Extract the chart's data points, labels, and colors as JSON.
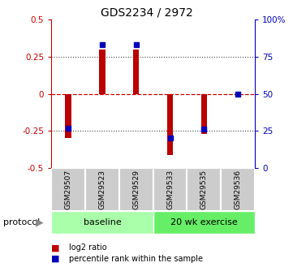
{
  "title": "GDS2234 / 2972",
  "samples": [
    "GSM29507",
    "GSM29523",
    "GSM29529",
    "GSM29533",
    "GSM29535",
    "GSM29536"
  ],
  "log2_ratio": [
    -0.3,
    0.3,
    0.3,
    -0.41,
    -0.27,
    -0.01
  ],
  "percentile_rank": [
    27,
    83,
    83,
    20,
    26,
    50
  ],
  "groups": [
    {
      "label": "baseline",
      "color": "#aaffaa",
      "start": 0,
      "end": 3
    },
    {
      "label": "20 wk exercise",
      "color": "#66ee66",
      "start": 3,
      "end": 6
    }
  ],
  "bar_color": "#bb0000",
  "dot_color": "#0000bb",
  "ylim_left": [
    -0.5,
    0.5
  ],
  "ylim_right": [
    0,
    100
  ],
  "yticks_left": [
    -0.5,
    -0.25,
    0,
    0.25,
    0.5
  ],
  "yticks_right": [
    0,
    25,
    50,
    75,
    100
  ],
  "yticklabels_right": [
    "0",
    "25",
    "50",
    "75",
    "100%"
  ],
  "zero_line_color": "#cc0000",
  "grid_color": "#444444",
  "legend_items": [
    {
      "label": "log2 ratio",
      "color": "#bb0000"
    },
    {
      "label": "percentile rank within the sample",
      "color": "#0000bb"
    }
  ],
  "bg_color": "#ffffff",
  "label_color_left": "#cc0000",
  "label_color_right": "#0000bb",
  "bar_width": 0.18,
  "protocol_label": "protocol",
  "sample_box_color": "#cccccc"
}
